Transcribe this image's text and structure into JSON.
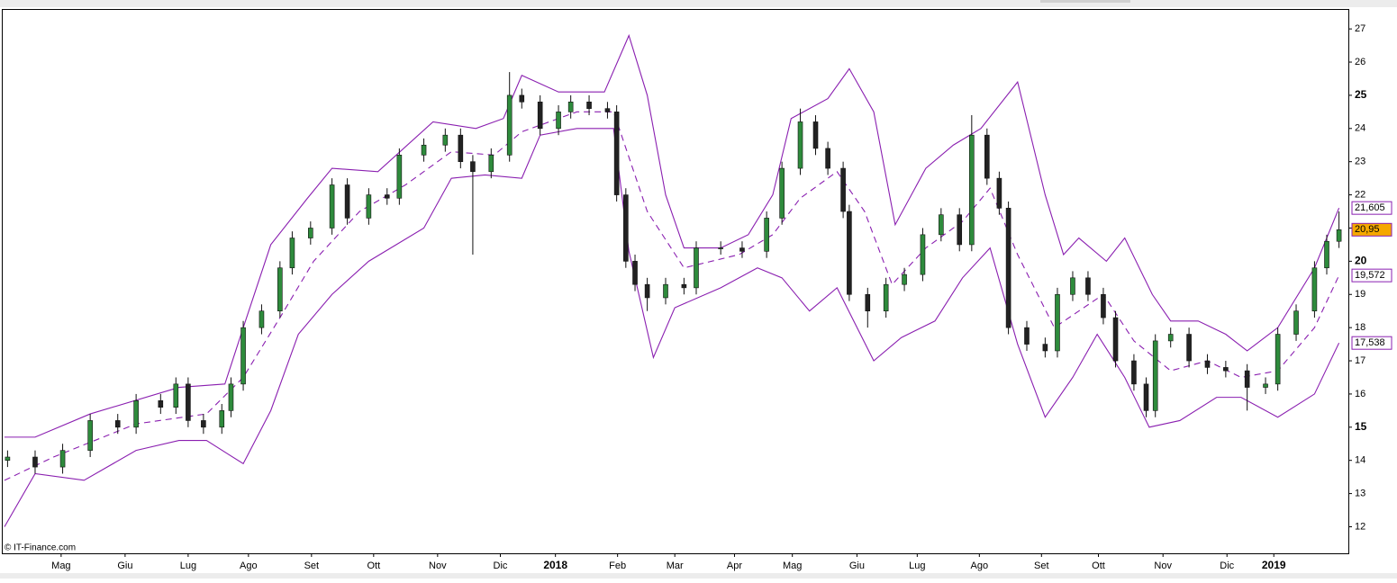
{
  "chart_data": {
    "type": "candlestick",
    "watermark": "© IT-Finance.com",
    "xlim": [
      0,
      437
    ],
    "ylim": [
      11.2,
      27.6
    ],
    "yticks": [
      12,
      13,
      14,
      15,
      16,
      17,
      18,
      19,
      20,
      21,
      22,
      23,
      24,
      25,
      26,
      27
    ],
    "xticks": [
      {
        "value": 18.5,
        "label": "Mag"
      },
      {
        "value": 39.4,
        "label": "Giu"
      },
      {
        "value": 60,
        "label": "Lug"
      },
      {
        "value": 79.7,
        "label": "Ago"
      },
      {
        "value": 100.3,
        "label": "Set"
      },
      {
        "value": 120.6,
        "label": "Ott"
      },
      {
        "value": 141.5,
        "label": "Nov"
      },
      {
        "value": 162,
        "label": "Dic"
      },
      {
        "value": 180,
        "label": "2018"
      },
      {
        "value": 200.3,
        "label": "Feb"
      },
      {
        "value": 219,
        "label": "Mar"
      },
      {
        "value": 238.5,
        "label": "Apr"
      },
      {
        "value": 257.4,
        "label": "Mag"
      },
      {
        "value": 278.5,
        "label": "Giu"
      },
      {
        "value": 298.2,
        "label": "Lug"
      },
      {
        "value": 318.5,
        "label": "Ago"
      },
      {
        "value": 338.8,
        "label": "Set"
      },
      {
        "value": 357.4,
        "label": "Ott"
      },
      {
        "value": 378.5,
        "label": "Nov"
      },
      {
        "value": 399.4,
        "label": "Dic"
      },
      {
        "value": 414.7,
        "label": "2019"
      }
    ],
    "up_color": "#2e8b3c",
    "down_color": "#222222",
    "x": [
      1,
      10,
      19,
      28,
      37,
      43,
      51,
      56,
      60,
      65,
      71,
      74,
      78,
      84,
      90,
      94,
      100,
      107,
      112,
      119,
      125,
      129,
      137,
      144,
      149,
      153,
      159,
      165,
      169,
      175,
      181,
      185,
      191,
      197,
      200,
      203,
      206,
      210,
      216,
      222,
      226,
      234,
      241,
      249,
      254,
      260,
      265,
      269,
      274,
      276,
      282,
      288,
      294,
      300,
      306,
      312,
      316,
      321,
      325,
      328,
      334,
      340,
      344,
      349,
      354,
      359,
      363,
      369,
      373,
      376,
      381,
      387,
      393,
      399,
      406,
      412,
      416,
      422,
      428,
      432,
      436
    ],
    "open": [
      14.0,
      14.1,
      13.8,
      14.3,
      15.2,
      15.0,
      15.8,
      15.6,
      16.3,
      15.2,
      15.0,
      15.5,
      16.3,
      18.0,
      18.5,
      19.8,
      20.7,
      21.0,
      22.3,
      21.3,
      22.0,
      21.9,
      23.2,
      23.5,
      23.8,
      23.0,
      22.7,
      23.2,
      25.0,
      24.8,
      24.0,
      24.5,
      24.8,
      24.6,
      24.5,
      22.0,
      20.0,
      19.3,
      18.9,
      19.3,
      19.2,
      20.4,
      20.4,
      20.3,
      21.3,
      22.8,
      24.2,
      23.4,
      22.8,
      21.5,
      19.0,
      18.5,
      19.3,
      19.6,
      20.8,
      21.4,
      20.5,
      23.8,
      22.5,
      21.6,
      18.0,
      17.5,
      17.3,
      19.0,
      19.5,
      19.0,
      18.3,
      17.0,
      16.3,
      15.5,
      17.6,
      17.8,
      17.0,
      16.8,
      16.7,
      16.2,
      16.3,
      17.8,
      18.5,
      19.8,
      20.6
    ],
    "high": [
      14.3,
      14.3,
      14.5,
      15.4,
      15.4,
      16.0,
      16.0,
      16.5,
      16.5,
      15.4,
      15.7,
      16.5,
      18.2,
      18.7,
      20.0,
      20.9,
      21.2,
      22.5,
      22.5,
      22.2,
      22.2,
      23.4,
      23.7,
      24.0,
      24.0,
      23.2,
      23.4,
      25.7,
      25.2,
      25.0,
      24.7,
      25.0,
      25.0,
      24.8,
      24.7,
      22.2,
      20.2,
      19.5,
      19.5,
      19.5,
      20.6,
      20.6,
      20.6,
      21.5,
      23.0,
      24.6,
      24.4,
      23.6,
      23.0,
      21.7,
      19.2,
      19.5,
      19.8,
      21.0,
      21.6,
      21.6,
      24.4,
      24.0,
      22.7,
      21.8,
      18.2,
      17.7,
      19.2,
      19.7,
      19.7,
      19.2,
      18.5,
      17.2,
      16.5,
      17.8,
      18.0,
      18.0,
      17.2,
      17.0,
      16.9,
      16.5,
      18.0,
      18.7,
      20.0,
      20.8,
      21.5
    ],
    "low": [
      13.8,
      13.6,
      13.6,
      14.1,
      14.8,
      14.8,
      15.4,
      15.4,
      15.0,
      14.8,
      14.8,
      15.3,
      16.1,
      17.8,
      18.3,
      19.6,
      20.5,
      20.8,
      21.1,
      21.1,
      21.7,
      21.7,
      23.0,
      23.3,
      22.8,
      20.2,
      22.5,
      23.0,
      24.6,
      23.8,
      23.8,
      24.3,
      24.4,
      24.3,
      21.8,
      19.8,
      19.1,
      18.5,
      18.7,
      19.0,
      19.0,
      20.2,
      20.1,
      20.1,
      21.1,
      22.6,
      23.2,
      22.6,
      21.3,
      18.8,
      18.0,
      18.3,
      19.1,
      19.4,
      20.6,
      20.3,
      20.3,
      22.3,
      21.4,
      17.8,
      17.3,
      17.1,
      17.1,
      18.8,
      18.8,
      18.1,
      16.8,
      16.1,
      15.3,
      15.3,
      17.4,
      16.8,
      16.6,
      16.5,
      15.5,
      16.0,
      16.1,
      17.6,
      18.3,
      19.6,
      20.4
    ],
    "close": [
      14.1,
      13.8,
      14.3,
      15.2,
      15.0,
      15.8,
      15.6,
      16.3,
      15.2,
      15.0,
      15.5,
      16.3,
      18.0,
      18.5,
      19.8,
      20.7,
      21.0,
      22.3,
      21.3,
      22.0,
      21.9,
      23.2,
      23.5,
      23.8,
      23.0,
      22.7,
      23.2,
      25.0,
      24.8,
      24.0,
      24.5,
      24.8,
      24.6,
      24.5,
      22.0,
      20.0,
      19.3,
      18.9,
      19.3,
      19.2,
      20.4,
      20.4,
      20.3,
      21.3,
      22.8,
      24.2,
      23.4,
      22.8,
      21.5,
      19.0,
      18.5,
      19.3,
      19.6,
      20.8,
      21.4,
      20.5,
      23.8,
      22.5,
      21.6,
      18.0,
      17.5,
      17.3,
      19.0,
      19.5,
      19.0,
      18.3,
      17.0,
      16.3,
      15.5,
      17.6,
      17.8,
      17.0,
      16.8,
      16.7,
      16.2,
      16.3,
      17.8,
      18.5,
      19.8,
      20.6,
      20.95
    ],
    "close_labels": [
      null,
      null,
      null,
      null,
      null,
      null,
      null,
      null,
      null,
      null,
      null,
      null,
      null,
      null,
      null,
      null,
      null,
      null,
      null,
      null,
      null,
      null,
      null,
      null,
      null,
      null,
      null,
      null,
      null,
      null,
      null,
      null,
      null,
      null,
      null,
      null,
      null,
      null,
      null,
      null,
      null,
      null,
      null,
      null,
      null,
      null,
      null,
      null,
      null,
      null,
      null,
      null,
      null,
      null,
      null,
      null,
      null,
      null,
      null,
      null,
      null,
      null,
      null,
      null,
      null,
      null,
      null,
      null,
      null,
      null,
      null,
      null,
      null,
      null,
      null,
      null,
      null,
      null,
      null,
      null,
      "20,95"
    ],
    "close_label_color": "#f5a800",
    "overlays": [
      {
        "color": "#8a1fb0",
        "dashed": false,
        "x": [
          0,
          10,
          28,
          57,
          72,
          78,
          87,
          99,
          107,
          122,
          140,
          154,
          163,
          169,
          181,
          196,
          204,
          210,
          216,
          222,
          234,
          243,
          251,
          257,
          269,
          276,
          284,
          291,
          301,
          310,
          319,
          331,
          340,
          346,
          351,
          360,
          366,
          375,
          381,
          390,
          399,
          406,
          416,
          428,
          436
        ],
        "values": [
          14.7,
          14.7,
          15.4,
          16.2,
          16.3,
          18.0,
          20.5,
          21.9,
          22.8,
          22.7,
          24.2,
          24.0,
          24.3,
          25.6,
          25.1,
          25.1,
          26.8,
          25.0,
          22.0,
          20.4,
          20.4,
          20.8,
          22.0,
          24.3,
          24.9,
          25.8,
          24.5,
          21.1,
          22.8,
          23.5,
          24.0,
          25.4,
          22.0,
          20.2,
          20.7,
          20.0,
          20.7,
          19.0,
          18.2,
          18.2,
          17.8,
          17.3,
          18.0,
          19.8,
          21.605
        ],
        "value_labels": [
          null,
          null,
          null,
          null,
          null,
          null,
          null,
          null,
          null,
          null,
          null,
          null,
          null,
          null,
          null,
          null,
          null,
          null,
          null,
          null,
          null,
          null,
          null,
          null,
          null,
          null,
          null,
          null,
          null,
          null,
          null,
          null,
          null,
          null,
          null,
          null,
          null,
          null,
          null,
          null,
          null,
          null,
          null,
          null,
          "21,605"
        ]
      },
      {
        "color": "#8a1fb0",
        "dashed": true,
        "x": [
          0,
          16,
          43,
          66,
          78,
          90,
          101,
          116,
          131,
          146,
          160,
          169,
          187,
          199,
          210,
          222,
          240,
          251,
          260,
          272,
          281,
          290,
          301,
          313,
          322,
          331,
          343,
          351,
          359,
          369,
          381,
          393,
          404,
          416,
          428,
          436
        ],
        "values": [
          13.4,
          14.1,
          15.1,
          15.4,
          16.5,
          18.3,
          20.0,
          21.5,
          22.3,
          23.3,
          23.2,
          23.9,
          24.5,
          24.5,
          21.5,
          19.8,
          20.2,
          20.8,
          21.9,
          22.7,
          21.5,
          19.3,
          20.4,
          21.2,
          22.2,
          20.2,
          18.0,
          18.5,
          19.0,
          17.6,
          16.7,
          17.0,
          16.5,
          16.7,
          18.0,
          19.572
        ],
        "value_labels": [
          null,
          null,
          null,
          null,
          null,
          null,
          null,
          null,
          null,
          null,
          null,
          null,
          null,
          null,
          null,
          null,
          null,
          null,
          null,
          null,
          null,
          null,
          null,
          null,
          null,
          null,
          null,
          null,
          null,
          null,
          null,
          null,
          null,
          null,
          null,
          "19,572"
        ]
      },
      {
        "color": "#8a1fb0",
        "dashed": false,
        "x": [
          0,
          10,
          26,
          43,
          57,
          66,
          78,
          87,
          96,
          107,
          119,
          137,
          146,
          157,
          169,
          175,
          187,
          199,
          204,
          212,
          219,
          234,
          246,
          254,
          263,
          272,
          284,
          293,
          304,
          313,
          322,
          331,
          340,
          349,
          357,
          366,
          374,
          384,
          396,
          404,
          416,
          428,
          436
        ],
        "values": [
          12.0,
          13.6,
          13.4,
          14.3,
          14.6,
          14.6,
          13.9,
          15.5,
          17.8,
          19.0,
          20.0,
          21.0,
          22.5,
          22.6,
          22.5,
          23.8,
          24.0,
          24.0,
          20.3,
          17.1,
          18.6,
          19.2,
          19.8,
          19.5,
          18.5,
          19.2,
          17.0,
          17.7,
          18.2,
          19.5,
          20.4,
          17.5,
          15.3,
          16.5,
          17.8,
          16.5,
          15.0,
          15.2,
          15.9,
          15.9,
          15.3,
          16.0,
          17.538
        ],
        "value_labels": [
          null,
          null,
          null,
          null,
          null,
          null,
          null,
          null,
          null,
          null,
          null,
          null,
          null,
          null,
          null,
          null,
          null,
          null,
          null,
          null,
          null,
          null,
          null,
          null,
          null,
          null,
          null,
          null,
          null,
          null,
          null,
          null,
          null,
          null,
          null,
          null,
          null,
          null,
          null,
          null,
          null,
          null,
          "17,538"
        ]
      }
    ]
  }
}
